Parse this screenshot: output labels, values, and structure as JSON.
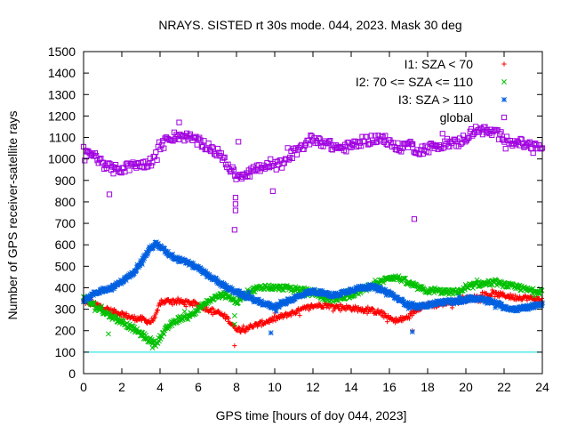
{
  "chart_data": {
    "type": "scatter",
    "title": "NRAYS. SISTED rt 30s mode. 044, 2023. Mask 30 deg",
    "xlabel": "GPS time [hours of doy 044, 2023]",
    "ylabel": "Number of GPS receiver-satellite rays",
    "xlim": [
      0,
      24
    ],
    "ylim": [
      0,
      1500
    ],
    "xticks": [
      0,
      2,
      4,
      6,
      8,
      10,
      12,
      14,
      16,
      18,
      20,
      22,
      24
    ],
    "yticks": [
      0,
      100,
      200,
      300,
      400,
      500,
      600,
      700,
      800,
      900,
      1000,
      1100,
      1200,
      1300,
      1400,
      1500
    ],
    "reference_line": {
      "y": 100,
      "color": "#00e0e0"
    },
    "legend_position": "top-right",
    "series": [
      {
        "name": "I1: SZA < 70",
        "marker": "+",
        "color": "#ff0000",
        "x": [
          0,
          0.5,
          1,
          1.5,
          2,
          2.5,
          3,
          3.5,
          3.8,
          4,
          4.5,
          5,
          5.5,
          6,
          6.5,
          7,
          7.5,
          7.9,
          8.2,
          8.6,
          9,
          9.5,
          10,
          10.5,
          11,
          11.5,
          12,
          12.5,
          13,
          13.5,
          14,
          14.5,
          15,
          15.5,
          16,
          16.5,
          17,
          17.5,
          18,
          18.5,
          19,
          19.5,
          20,
          20.5,
          21,
          21.5,
          22,
          22.5,
          23,
          23.5,
          24
        ],
        "y": [
          335,
          325,
          310,
          290,
          280,
          260,
          255,
          240,
          270,
          330,
          340,
          335,
          330,
          320,
          300,
          285,
          260,
          215,
          205,
          215,
          225,
          240,
          255,
          270,
          285,
          300,
          315,
          320,
          315,
          310,
          305,
          300,
          295,
          285,
          255,
          245,
          265,
          305,
          320,
          320,
          330,
          335,
          345,
          355,
          365,
          370,
          365,
          355,
          355,
          350,
          345
        ]
      },
      {
        "name": "I2: 70 <= SZA <= 110",
        "marker": "x",
        "color": "#00c000",
        "x": [
          0,
          0.5,
          1,
          1.5,
          2,
          2.5,
          3,
          3.5,
          3.8,
          4,
          4.5,
          5,
          5.5,
          6,
          6.5,
          7,
          7.5,
          8,
          8.5,
          9,
          9.5,
          10,
          10.5,
          11,
          11.5,
          12,
          12.5,
          13,
          13.5,
          14,
          14.5,
          15,
          15.5,
          16,
          16.5,
          17,
          17.5,
          18,
          18.5,
          19,
          19.5,
          20,
          20.5,
          21,
          21.5,
          22,
          22.5,
          23,
          23.5,
          24
        ],
        "y": [
          350,
          320,
          290,
          265,
          240,
          215,
          185,
          150,
          140,
          170,
          225,
          255,
          270,
          300,
          335,
          360,
          370,
          330,
          375,
          395,
          405,
          400,
          400,
          395,
          390,
          375,
          355,
          345,
          355,
          365,
          385,
          405,
          425,
          450,
          445,
          420,
          400,
          385,
          385,
          380,
          380,
          395,
          415,
          420,
          425,
          415,
          405,
          395,
          385,
          385
        ]
      },
      {
        "name": "I3: SZA > 110",
        "marker": "*",
        "color": "#0060e0",
        "x": [
          0,
          0.5,
          1,
          1.5,
          2,
          2.5,
          3,
          3.5,
          3.8,
          4,
          4.5,
          5,
          5.5,
          6,
          6.5,
          7,
          7.5,
          8,
          8.5,
          9,
          9.5,
          10,
          10.5,
          11,
          11.5,
          12,
          12.5,
          13,
          13.5,
          14,
          14.5,
          15,
          15.5,
          16,
          16.5,
          17,
          17.5,
          18,
          18.5,
          19,
          19.5,
          20,
          20.5,
          21,
          21.5,
          22,
          22.5,
          23,
          23.5,
          24
        ],
        "y": [
          335,
          370,
          390,
          400,
          430,
          460,
          520,
          585,
          605,
          590,
          555,
          530,
          515,
          490,
          460,
          430,
          400,
          380,
          360,
          340,
          325,
          310,
          330,
          350,
          370,
          385,
          375,
          365,
          375,
          390,
          400,
          405,
          395,
          375,
          345,
          320,
          310,
          320,
          330,
          335,
          335,
          345,
          350,
          345,
          330,
          310,
          300,
          305,
          315,
          320
        ]
      },
      {
        "name": "global",
        "marker": "square",
        "color": "#a000e0",
        "x": [
          0,
          0.5,
          1,
          1.5,
          2,
          2.5,
          3,
          3.5,
          4,
          4.5,
          5,
          5.5,
          6,
          6.5,
          7,
          7.5,
          7.8,
          8,
          8.5,
          9,
          9.5,
          10,
          10.5,
          11,
          11.5,
          12,
          12.5,
          13,
          13.5,
          14,
          14.5,
          15,
          15.5,
          16,
          16.5,
          17,
          17.5,
          18,
          18.5,
          19,
          19.5,
          20,
          20.5,
          21,
          21.5,
          22,
          22.5,
          23,
          23.5,
          24
        ],
        "y": [
          1040,
          1020,
          980,
          950,
          955,
          965,
          975,
          985,
          1050,
          1100,
          1110,
          1100,
          1080,
          1060,
          1030,
          980,
          935,
          920,
          935,
          955,
          960,
          965,
          985,
          1030,
          1060,
          1100,
          1080,
          1060,
          1050,
          1060,
          1080,
          1090,
          1100,
          1070,
          1050,
          1070,
          1040,
          1050,
          1060,
          1080,
          1070,
          1100,
          1140,
          1130,
          1120,
          1100,
          1080,
          1070,
          1060,
          1050
        ]
      }
    ],
    "outliers": [
      {
        "series": "I1: SZA < 70",
        "x": 7.9,
        "y": 130
      },
      {
        "series": "I1: SZA < 70",
        "x": 17.2,
        "y": 200
      },
      {
        "series": "I2: 70 <= SZA <= 110",
        "x": 1.3,
        "y": 185
      },
      {
        "series": "I2: 70 <= SZA <= 110",
        "x": 3.6,
        "y": 120
      },
      {
        "series": "I2: 70 <= SZA <= 110",
        "x": 7.9,
        "y": 270
      },
      {
        "series": "I2: 70 <= SZA <= 110",
        "x": 7.9,
        "y": 230
      },
      {
        "series": "I3: SZA > 110",
        "x": 9.8,
        "y": 190
      },
      {
        "series": "I3: SZA > 110",
        "x": 17.2,
        "y": 195
      },
      {
        "series": "global",
        "x": 1.35,
        "y": 835
      },
      {
        "series": "global",
        "x": 7.95,
        "y": 820
      },
      {
        "series": "global",
        "x": 7.95,
        "y": 790
      },
      {
        "series": "global",
        "x": 7.95,
        "y": 760
      },
      {
        "series": "global",
        "x": 7.9,
        "y": 670
      },
      {
        "series": "global",
        "x": 9.9,
        "y": 850
      },
      {
        "series": "global",
        "x": 8.1,
        "y": 1080
      },
      {
        "series": "global",
        "x": 17.3,
        "y": 720
      },
      {
        "series": "global",
        "x": 17.2,
        "y": 1070
      },
      {
        "series": "global",
        "x": 5.0,
        "y": 1170
      }
    ]
  }
}
